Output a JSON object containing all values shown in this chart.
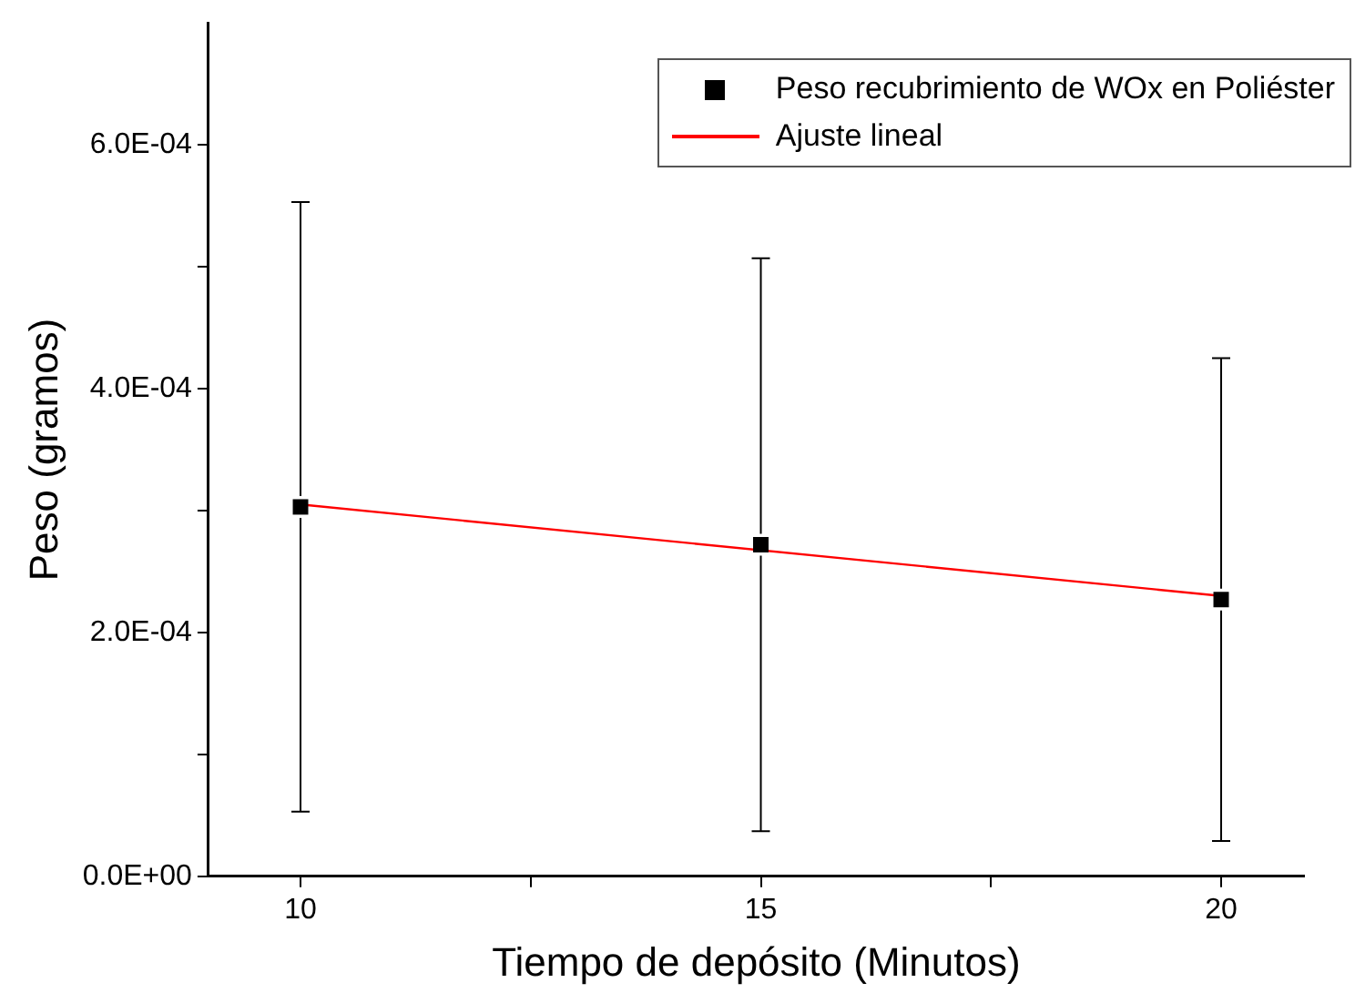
{
  "chart_data": {
    "type": "scatter",
    "xlabel": "Tiempo de depósito (Minutos)",
    "ylabel": "Peso (gramos)",
    "xlim": [
      9,
      20.9
    ],
    "xticks": [
      10,
      {
        "value": 12.5,
        "label": null
      },
      15,
      {
        "value": 17.5,
        "label": null
      },
      20
    ],
    "ylim": [
      0,
      0.0007
    ],
    "yticks": [
      {
        "value": 0,
        "label": "0.0E+00"
      },
      {
        "value": 0.0001,
        "label": null
      },
      {
        "value": 0.0002,
        "label": "2.0E-04"
      },
      {
        "value": 0.0003,
        "label": null
      },
      {
        "value": 0.0004,
        "label": "4.0E-04"
      },
      {
        "value": 0.0005,
        "label": null
      },
      {
        "value": 0.0006,
        "label": "6.0E-04"
      }
    ],
    "grid": false,
    "legend": "top right",
    "series": [
      {
        "name": "Peso recubrimiento de WOx en Poliéster",
        "marker": "square",
        "color": "#000000",
        "x": [
          10,
          15,
          20
        ],
        "values": [
          0.000303,
          0.000272,
          0.000227
        ],
        "errors": [
          0.00025,
          0.000235,
          0.000198
        ]
      },
      {
        "name": "Ajuste lineal",
        "type": "line",
        "marker": "none",
        "line_style": "solid",
        "color": "#ff0000",
        "x": [
          10,
          20
        ],
        "values": [
          0.000305,
          0.00023
        ]
      }
    ]
  }
}
